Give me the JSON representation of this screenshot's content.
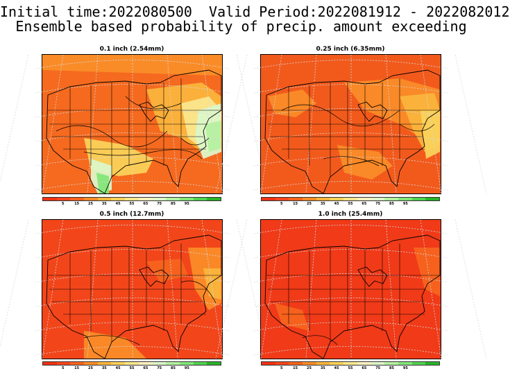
{
  "header": {
    "line1": "Initial time:2022080500  Valid Period:2022081912 - 2022082012",
    "line2": "Ensemble based probability of precip. amount exceeding"
  },
  "panels": [
    {
      "title": "0.1 inch (2.54mm)",
      "base": "#f56a1f"
    },
    {
      "title": "0.25 inch (6.35mm)",
      "base": "#f25a1c"
    },
    {
      "title": "0.5 inch (12.7mm)",
      "base": "#f2461a"
    },
    {
      "title": "1.0 inch (25.4mm)",
      "base": "#f03a18"
    }
  ],
  "colorbar": {
    "colors": [
      "#f03214",
      "#f5461e",
      "#f5641e",
      "#fa8c28",
      "#fab43c",
      "#fad25a",
      "#fae68c",
      "#faf0be",
      "#dcf5c8",
      "#b4f0a0",
      "#82e678",
      "#50d250",
      "#28b428"
    ],
    "tick_labels": [
      "5",
      "15",
      "25",
      "35",
      "45",
      "55",
      "65",
      "75",
      "85",
      "95"
    ]
  }
}
